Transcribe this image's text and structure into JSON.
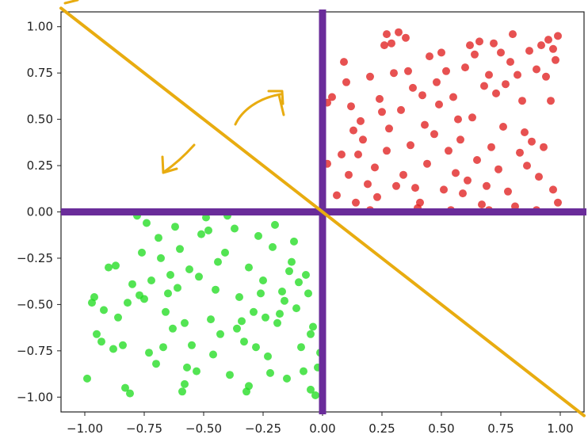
{
  "chart_data": {
    "type": "scatter",
    "title": "",
    "xlabel": "",
    "ylabel": "",
    "xlim": [
      -1.1,
      1.1
    ],
    "ylim": [
      -1.08,
      1.08
    ],
    "x_ticks": [
      -1.0,
      -0.75,
      -0.5,
      -0.25,
      0.0,
      0.25,
      0.5,
      0.75,
      1.0
    ],
    "y_ticks": [
      -1.0,
      -0.75,
      -0.5,
      -0.25,
      0.0,
      0.25,
      0.5,
      0.75,
      1.0
    ],
    "x_tick_labels": [
      "−1.00",
      "−0.75",
      "−0.50",
      "−0.25",
      "0.00",
      "0.25",
      "0.50",
      "0.75",
      "1.00"
    ],
    "y_tick_labels": [
      "−1.00",
      "−0.75",
      "−0.50",
      "−0.25",
      "0.00",
      "0.25",
      "0.50",
      "0.75",
      "1.00"
    ],
    "grid": false,
    "series": [
      {
        "color": "#e02020",
        "points": [
          [
            0.02,
            0.59
          ],
          [
            0.04,
            0.62
          ],
          [
            0.09,
            0.81
          ],
          [
            0.1,
            0.7
          ],
          [
            0.13,
            0.44
          ],
          [
            0.12,
            0.57
          ],
          [
            0.15,
            0.31
          ],
          [
            0.17,
            0.39
          ],
          [
            0.2,
            0.73
          ],
          [
            0.22,
            0.24
          ],
          [
            0.24,
            0.61
          ],
          [
            0.26,
            0.9
          ],
          [
            0.27,
            0.96
          ],
          [
            0.29,
            0.91
          ],
          [
            0.32,
            0.97
          ],
          [
            0.35,
            0.94
          ],
          [
            0.3,
            0.75
          ],
          [
            0.33,
            0.55
          ],
          [
            0.36,
            0.76
          ],
          [
            0.38,
            0.67
          ],
          [
            0.42,
            0.63
          ],
          [
            0.45,
            0.84
          ],
          [
            0.48,
            0.7
          ],
          [
            0.5,
            0.86
          ],
          [
            0.52,
            0.76
          ],
          [
            0.55,
            0.62
          ],
          [
            0.57,
            0.5
          ],
          [
            0.6,
            0.78
          ],
          [
            0.62,
            0.9
          ],
          [
            0.64,
            0.85
          ],
          [
            0.66,
            0.92
          ],
          [
            0.68,
            0.68
          ],
          [
            0.7,
            0.74
          ],
          [
            0.72,
            0.91
          ],
          [
            0.75,
            0.86
          ],
          [
            0.77,
            0.69
          ],
          [
            0.79,
            0.81
          ],
          [
            0.8,
            0.96
          ],
          [
            0.82,
            0.74
          ],
          [
            0.84,
            0.6
          ],
          [
            0.87,
            0.87
          ],
          [
            0.9,
            0.77
          ],
          [
            0.92,
            0.9
          ],
          [
            0.95,
            0.93
          ],
          [
            0.97,
            0.88
          ],
          [
            0.99,
            0.95
          ],
          [
            0.98,
            0.82
          ],
          [
            0.96,
            0.6
          ],
          [
            0.08,
            0.31
          ],
          [
            0.11,
            0.2
          ],
          [
            0.14,
            0.05
          ],
          [
            0.19,
            0.15
          ],
          [
            0.23,
            0.08
          ],
          [
            0.27,
            0.33
          ],
          [
            0.31,
            0.14
          ],
          [
            0.34,
            0.2
          ],
          [
            0.39,
            0.13
          ],
          [
            0.41,
            0.05
          ],
          [
            0.44,
            0.26
          ],
          [
            0.47,
            0.42
          ],
          [
            0.51,
            0.12
          ],
          [
            0.53,
            0.33
          ],
          [
            0.56,
            0.21
          ],
          [
            0.59,
            0.1
          ],
          [
            0.61,
            0.17
          ],
          [
            0.65,
            0.28
          ],
          [
            0.67,
            0.04
          ],
          [
            0.69,
            0.14
          ],
          [
            0.71,
            0.35
          ],
          [
            0.74,
            0.23
          ],
          [
            0.76,
            0.46
          ],
          [
            0.78,
            0.11
          ],
          [
            0.81,
            0.03
          ],
          [
            0.83,
            0.32
          ],
          [
            0.86,
            0.25
          ],
          [
            0.88,
            0.38
          ],
          [
            0.91,
            0.19
          ],
          [
            0.93,
            0.35
          ],
          [
            0.97,
            0.12
          ],
          [
            0.99,
            0.05
          ],
          [
            0.02,
            0.26
          ],
          [
            0.06,
            0.09
          ],
          [
            0.16,
            0.49
          ],
          [
            0.25,
            0.54
          ],
          [
            0.28,
            0.45
          ],
          [
            0.37,
            0.36
          ],
          [
            0.43,
            0.47
          ],
          [
            0.49,
            0.58
          ],
          [
            0.58,
            0.39
          ],
          [
            0.63,
            0.51
          ],
          [
            0.73,
            0.64
          ],
          [
            0.85,
            0.43
          ],
          [
            0.94,
            0.73
          ],
          [
            0.4,
            0.02
          ],
          [
            0.54,
            0.01
          ],
          [
            0.2,
            0.01
          ],
          [
            0.7,
            0.01
          ],
          [
            0.9,
            0.01
          ]
        ]
      },
      {
        "color": "#22dd22",
        "points": [
          [
            -0.99,
            -0.9
          ],
          [
            -0.96,
            -0.46
          ],
          [
            -0.95,
            -0.66
          ],
          [
            -0.93,
            -0.7
          ],
          [
            -0.9,
            -0.3
          ],
          [
            -0.88,
            -0.74
          ],
          [
            -0.86,
            -0.57
          ],
          [
            -0.84,
            -0.72
          ],
          [
            -0.83,
            -0.95
          ],
          [
            -0.82,
            -0.49
          ],
          [
            -0.8,
            -0.39
          ],
          [
            -0.78,
            -0.02
          ],
          [
            -0.76,
            -0.22
          ],
          [
            -0.75,
            -0.47
          ],
          [
            -0.74,
            -0.06
          ],
          [
            -0.72,
            -0.37
          ],
          [
            -0.7,
            -0.82
          ],
          [
            -0.69,
            -0.14
          ],
          [
            -0.67,
            -0.73
          ],
          [
            -0.66,
            -0.54
          ],
          [
            -0.64,
            -0.34
          ],
          [
            -0.63,
            -0.63
          ],
          [
            -0.61,
            -0.41
          ],
          [
            -0.6,
            -0.2
          ],
          [
            -0.58,
            -0.93
          ],
          [
            -0.56,
            -0.31
          ],
          [
            -0.55,
            -0.72
          ],
          [
            -0.53,
            -0.86
          ],
          [
            -0.51,
            -0.12
          ],
          [
            -0.49,
            -0.03
          ],
          [
            -0.47,
            -0.58
          ],
          [
            -0.45,
            -0.42
          ],
          [
            -0.43,
            -0.66
          ],
          [
            -0.41,
            -0.22
          ],
          [
            -0.39,
            -0.88
          ],
          [
            -0.37,
            -0.09
          ],
          [
            -0.35,
            -0.46
          ],
          [
            -0.33,
            -0.7
          ],
          [
            -0.31,
            -0.3
          ],
          [
            -0.29,
            -0.54
          ],
          [
            -0.27,
            -0.13
          ],
          [
            -0.25,
            -0.37
          ],
          [
            -0.23,
            -0.78
          ],
          [
            -0.21,
            -0.19
          ],
          [
            -0.19,
            -0.6
          ],
          [
            -0.17,
            -0.43
          ],
          [
            -0.15,
            -0.9
          ],
          [
            -0.13,
            -0.27
          ],
          [
            -0.11,
            -0.52
          ],
          [
            -0.09,
            -0.73
          ],
          [
            -0.07,
            -0.34
          ],
          [
            -0.05,
            -0.96
          ],
          [
            -0.04,
            -0.62
          ],
          [
            -0.02,
            -0.84
          ],
          [
            -0.97,
            -0.49
          ],
          [
            -0.92,
            -0.53
          ],
          [
            -0.87,
            -0.29
          ],
          [
            -0.81,
            -0.98
          ],
          [
            -0.77,
            -0.45
          ],
          [
            -0.73,
            -0.76
          ],
          [
            -0.68,
            -0.25
          ],
          [
            -0.62,
            -0.08
          ],
          [
            -0.57,
            -0.84
          ],
          [
            -0.52,
            -0.35
          ],
          [
            -0.48,
            -0.1
          ],
          [
            -0.44,
            -0.27
          ],
          [
            -0.4,
            -0.02
          ],
          [
            -0.36,
            -0.63
          ],
          [
            -0.32,
            -0.97
          ],
          [
            -0.28,
            -0.73
          ],
          [
            -0.24,
            -0.57
          ],
          [
            -0.2,
            -0.07
          ],
          [
            -0.16,
            -0.48
          ],
          [
            -0.12,
            -0.16
          ],
          [
            -0.08,
            -0.86
          ],
          [
            -0.06,
            -0.44
          ],
          [
            -0.03,
            -0.99
          ],
          [
            -0.01,
            -0.76
          ],
          [
            -0.31,
            -0.94
          ],
          [
            -0.22,
            -0.87
          ],
          [
            -0.34,
            -0.59
          ],
          [
            -0.18,
            -0.55
          ],
          [
            -0.14,
            -0.32
          ],
          [
            -0.26,
            -0.44
          ],
          [
            -0.65,
            -0.44
          ],
          [
            -0.59,
            -0.97
          ],
          [
            -0.46,
            -0.77
          ],
          [
            -0.1,
            -0.38
          ],
          [
            -0.05,
            -0.66
          ],
          [
            -0.58,
            -0.6
          ]
        ]
      }
    ],
    "reference_lines": [
      {
        "color": "#6a2c9a",
        "orientation": "horizontal",
        "value": 0.0
      },
      {
        "color": "#6a2c9a",
        "orientation": "vertical",
        "value": 0.0
      },
      {
        "color": "#e8ac10",
        "orientation": "diagonal",
        "from": [
          -1.1,
          1.1
        ],
        "to": [
          1.1,
          -1.1
        ]
      }
    ],
    "annotation_color": "#e8ac10"
  }
}
